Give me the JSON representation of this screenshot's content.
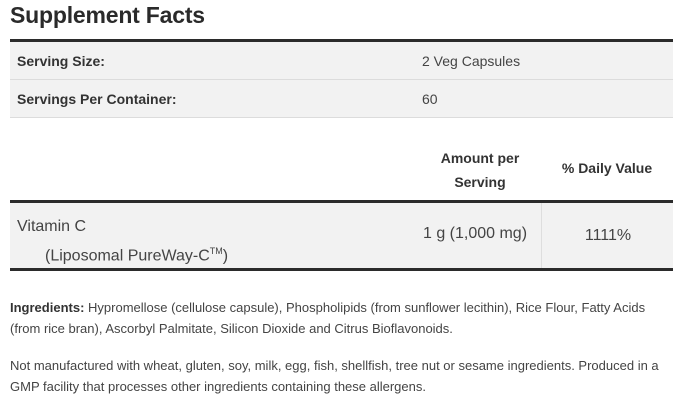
{
  "title": "Supplement Facts",
  "serving_info": [
    {
      "label": "Serving Size:",
      "value": "2 Veg Capsules"
    },
    {
      "label": "Servings Per Container:",
      "value": "60"
    }
  ],
  "columns": {
    "amount": "Amount per Serving",
    "amount_line1": "Amount per",
    "amount_line2": "Serving",
    "daily_value": "% Daily Value"
  },
  "nutrients": [
    {
      "name": "Vitamin C",
      "sub": "(Liposomal PureWay-C",
      "sub_tm": "TM",
      "sub_end": ")",
      "amount": "1 g (1,000 mg)",
      "daily_value": "1111%"
    }
  ],
  "ingredients": {
    "label": "Ingredients:",
    "text": " Hypromellose (cellulose capsule), Phospholipids (from sunflower lecithin), Rice Flour, Fatty Acids (from rice bran), Ascorbyl Palmitate, Silicon Dioxide and Citrus Bioflavonoids."
  },
  "allergen_note": "Not manufactured with wheat, gluten, soy, milk, egg, fish, shellfish, tree nut or sesame ingredients. Produced in a GMP facility that processes other ingredients containing these allergens."
}
